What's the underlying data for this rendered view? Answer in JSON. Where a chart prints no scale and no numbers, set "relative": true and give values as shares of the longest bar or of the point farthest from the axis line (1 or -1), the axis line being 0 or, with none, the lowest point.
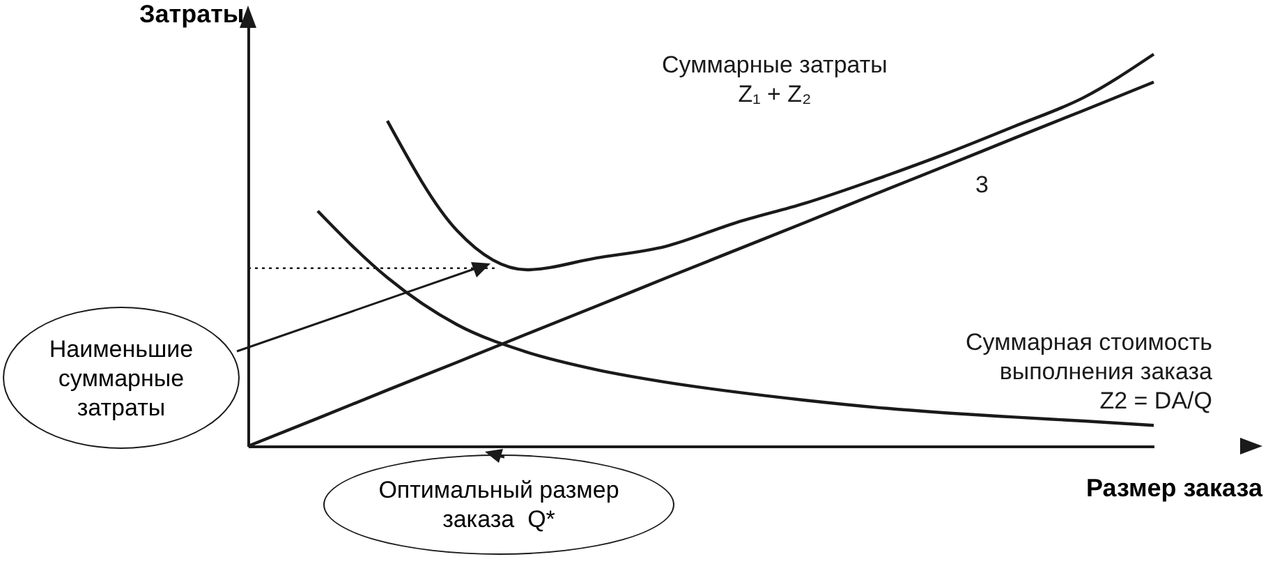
{
  "chart_data": {
    "type": "line",
    "relative": true,
    "xlabel": "Размер заказа",
    "ylabel": "Затраты",
    "categories": [
      null,
      null,
      null,
      null,
      null,
      null,
      null,
      null,
      null,
      null,
      null,
      null,
      null,
      null
    ],
    "series": [
      {
        "name": "Суммарные затраты\nZ₁ + Z₂",
        "color": "#1a1a1a",
        "values": [
          null,
          null,
          0.83,
          0.55,
          0.45,
          0.48,
          0.51,
          0.57,
          0.62,
          0.68,
          0.745,
          0.816,
          0.89,
          1
        ]
      },
      {
        "name": "3",
        "color": "#1a1a1a",
        "values": [
          0,
          0.071,
          0.143,
          0.214,
          0.286,
          0.357,
          0.429,
          0.5,
          0.571,
          0.643,
          0.714,
          0.786,
          0.857,
          0.929
        ]
      },
      {
        "name": "Суммарная стоимость\nвыполнения заказа\nZ2 = DA/Q",
        "color": "#1a1a1a",
        "values": [
          null,
          0.6,
          0.43,
          0.31,
          0.24,
          0.195,
          0.163,
          0.138,
          0.117,
          0.099,
          0.085,
          0.074,
          0.064,
          0.053
        ]
      }
    ],
    "ref_lines": [
      {
        "axis": "y",
        "value": 0.454,
        "line_style": "dotted"
      }
    ],
    "annotations": [
      "Наименьшие\nсуммарные\nзатраты",
      "Оптимальный размер\nзаказа  Q*"
    ],
    "legend": false,
    "grid": false,
    "marker": "none",
    "line_style": "solid"
  }
}
